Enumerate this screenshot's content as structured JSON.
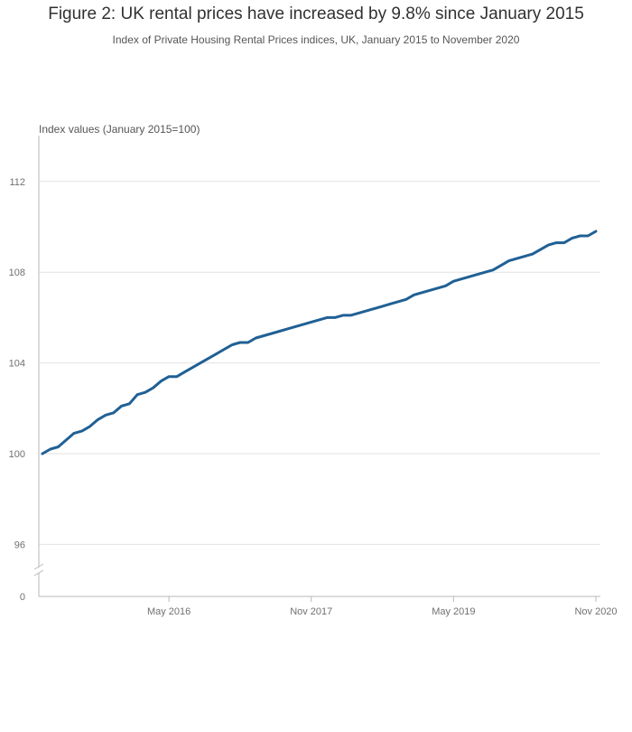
{
  "title": "Figure 2: UK rental prices have increased by 9.8% since January 2015",
  "subtitle": "Index of Private Housing Rental Prices indices, UK, January 2015 to November 2020",
  "colors": {
    "line": "#206095",
    "grid": "#e2e2e2",
    "axis": "#bababa",
    "text": "#707071"
  },
  "chart_data": {
    "type": "line",
    "ylabel": "Index values (January 2015=100)",
    "xlabel": "",
    "y_ticks": [
      112,
      108,
      104,
      100,
      96
    ],
    "y_break_label": "0",
    "ylim": [
      95,
      114
    ],
    "x_tick_labels": [
      "May 2016",
      "Nov 2017",
      "May 2019",
      "Nov 2020"
    ],
    "x_tick_dates": [
      "2016-05",
      "2017-11",
      "2019-05",
      "2020-11"
    ],
    "grid": true,
    "series": [
      {
        "x": [
          "2015-01",
          "2015-02",
          "2015-03",
          "2015-04",
          "2015-05",
          "2015-06",
          "2015-07",
          "2015-08",
          "2015-09",
          "2015-10",
          "2015-11",
          "2015-12",
          "2016-01",
          "2016-02",
          "2016-03",
          "2016-04",
          "2016-05",
          "2016-06",
          "2016-07",
          "2016-08",
          "2016-09",
          "2016-10",
          "2016-11",
          "2016-12",
          "2017-01",
          "2017-02",
          "2017-03",
          "2017-04",
          "2017-05",
          "2017-06",
          "2017-07",
          "2017-08",
          "2017-09",
          "2017-10",
          "2017-11",
          "2017-12",
          "2018-01",
          "2018-02",
          "2018-03",
          "2018-04",
          "2018-05",
          "2018-06",
          "2018-07",
          "2018-08",
          "2018-09",
          "2018-10",
          "2018-11",
          "2018-12",
          "2019-01",
          "2019-02",
          "2019-03",
          "2019-04",
          "2019-05",
          "2019-06",
          "2019-07",
          "2019-08",
          "2019-09",
          "2019-10",
          "2019-11",
          "2019-12",
          "2020-01",
          "2020-02",
          "2020-03",
          "2020-04",
          "2020-05",
          "2020-06",
          "2020-07",
          "2020-08",
          "2020-09",
          "2020-10",
          "2020-11"
        ],
        "values": [
          100.0,
          100.2,
          100.3,
          100.6,
          100.9,
          101.0,
          101.2,
          101.5,
          101.7,
          101.8,
          102.1,
          102.2,
          102.6,
          102.7,
          102.9,
          103.2,
          103.4,
          103.4,
          103.6,
          103.8,
          104.0,
          104.2,
          104.4,
          104.6,
          104.8,
          104.9,
          104.9,
          105.1,
          105.2,
          105.3,
          105.4,
          105.5,
          105.6,
          105.7,
          105.8,
          105.9,
          106.0,
          106.0,
          106.1,
          106.1,
          106.2,
          106.3,
          106.4,
          106.5,
          106.6,
          106.7,
          106.8,
          107.0,
          107.1,
          107.2,
          107.3,
          107.4,
          107.6,
          107.7,
          107.8,
          107.9,
          108.0,
          108.1,
          108.3,
          108.5,
          108.6,
          108.7,
          108.8,
          109.0,
          109.2,
          109.3,
          109.3,
          109.5,
          109.6,
          109.6,
          109.8
        ]
      }
    ]
  }
}
